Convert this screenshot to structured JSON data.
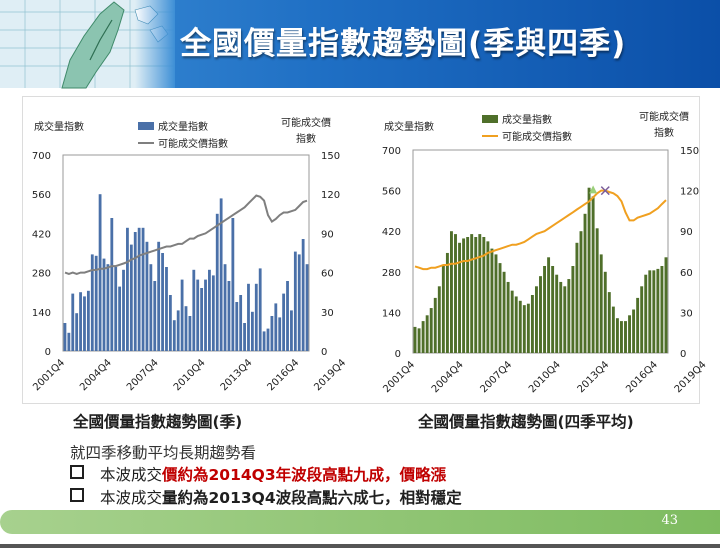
{
  "title": "全國價量指數趨勢圖(季與四季)",
  "page_number": "43",
  "colors": {
    "bar_blue": "#4a70a8",
    "line_gray": "#7f7f7f",
    "bar_green": "#4f6f2a",
    "line_orange": "#f0a020"
  },
  "captions": {
    "left": "全國價量指數趨勢圖(季)",
    "right": "全國價量指數趨勢圖(四季平均)"
  },
  "note": "就四季移動平均長期趨勢看",
  "bullets": [
    {
      "parts": [
        {
          "text": "本波成交",
          "style": "plain"
        },
        {
          "text": "價約為2014Q3年波段高點九成，價略漲",
          "style": "red"
        }
      ]
    },
    {
      "parts": [
        {
          "text": "本波成交",
          "style": "plain"
        },
        {
          "text": "量約為2013Q4波段高點六成七，相對穩定",
          "style": "bold"
        }
      ]
    }
  ],
  "chart_data": [
    {
      "type": "bar",
      "title": "全國價量指數趨勢圖(季)",
      "ylabel": "成交量指數",
      "y2label_lines": [
        "可能成交價",
        "指數"
      ],
      "legend": [
        "成交量指數",
        "可能成交價指數"
      ],
      "legend_placement": "top",
      "ylim": [
        0,
        700
      ],
      "y2lim": [
        0,
        150
      ],
      "yticks": [
        "0",
        "140",
        "280",
        "420",
        "560",
        "700"
      ],
      "y2ticks": [
        "0",
        "30",
        "60",
        "90",
        "120",
        "150"
      ],
      "xtick_labels": [
        "2001Q4",
        "2004Q4",
        "2007Q4",
        "2010Q4",
        "2013Q4",
        "2016Q4",
        "2019Q4"
      ],
      "grid": false,
      "series": [
        {
          "name": "成交量指數",
          "kind": "bar",
          "axis": "left",
          "values": [
            100,
            65,
            205,
            135,
            210,
            195,
            215,
            345,
            340,
            560,
            330,
            310,
            475,
            300,
            230,
            290,
            440,
            380,
            425,
            440,
            440,
            390,
            310,
            250,
            390,
            350,
            300,
            200,
            110,
            145,
            255,
            160,
            125,
            290,
            255,
            225,
            255,
            290,
            270,
            490,
            545,
            310,
            250,
            475,
            175,
            200,
            100,
            240,
            140,
            240,
            295,
            70,
            80,
            125,
            170,
            120,
            205,
            250,
            145,
            355,
            345,
            400,
            310
          ]
        },
        {
          "name": "可能成交價指數",
          "kind": "line",
          "axis": "right",
          "values": [
            60,
            59,
            60,
            59,
            60,
            60,
            61,
            62,
            62,
            63,
            63,
            64,
            65,
            65,
            66,
            67,
            68,
            70,
            71,
            73,
            74,
            75,
            76,
            77,
            78,
            79,
            80,
            80,
            81,
            82,
            82,
            84,
            86,
            86,
            88,
            89,
            90,
            92,
            94,
            96,
            98,
            100,
            102,
            104,
            106,
            108,
            110,
            113,
            116,
            119,
            118,
            115,
            104,
            99,
            101,
            104,
            106,
            106,
            107,
            108,
            111,
            114,
            115
          ]
        }
      ]
    },
    {
      "type": "bar",
      "title": "全國價量指數趨勢圖(四季平均)",
      "ylabel": "成交量指數",
      "y2label_lines": [
        "可能成交價",
        "指數"
      ],
      "legend": [
        "成交量指數",
        "可能成交價指數"
      ],
      "legend_placement": "top",
      "ylim": [
        0,
        700
      ],
      "y2lim": [
        0,
        150
      ],
      "yticks": [
        "0",
        "140",
        "280",
        "420",
        "560",
        "700"
      ],
      "y2ticks": [
        "0",
        "30",
        "60",
        "90",
        "120",
        "150"
      ],
      "xtick_labels": [
        "2001Q4",
        "2004Q4",
        "2007Q4",
        "2010Q4",
        "2013Q4",
        "2016Q4",
        "2019Q4"
      ],
      "grid": false,
      "series": [
        {
          "name": "成交量指數",
          "kind": "bar",
          "axis": "left",
          "values": [
            90,
            85,
            110,
            130,
            155,
            190,
            230,
            300,
            345,
            420,
            410,
            380,
            395,
            400,
            410,
            400,
            410,
            400,
            385,
            360,
            340,
            310,
            280,
            245,
            215,
            195,
            180,
            165,
            170,
            200,
            230,
            265,
            300,
            330,
            300,
            270,
            245,
            230,
            255,
            300,
            380,
            420,
            480,
            570,
            540,
            430,
            340,
            280,
            210,
            160,
            120,
            110,
            110,
            130,
            150,
            190,
            230,
            270,
            285,
            285,
            290,
            300,
            330
          ]
        },
        {
          "name": "可能成交價指數",
          "kind": "line",
          "axis": "right",
          "values": [
            64,
            63,
            62,
            62,
            63,
            63,
            64,
            65,
            65,
            66,
            66,
            67,
            68,
            68,
            69,
            70,
            71,
            72,
            74,
            75,
            76,
            77,
            78,
            79,
            80,
            80,
            81,
            82,
            84,
            86,
            88,
            89,
            90,
            92,
            94,
            96,
            98,
            100,
            102,
            104,
            106,
            108,
            110,
            112,
            115,
            118,
            120,
            120,
            119,
            118,
            116,
            112,
            104,
            98,
            98,
            100,
            101,
            102,
            103,
            105,
            107,
            110,
            113
          ]
        }
      ],
      "annotations": [
        {
          "kind": "x-mark",
          "series": "可能成交價指數",
          "index": 47
        },
        {
          "kind": "triangle-mark",
          "series": "成交量指數",
          "index": 44
        }
      ]
    }
  ]
}
